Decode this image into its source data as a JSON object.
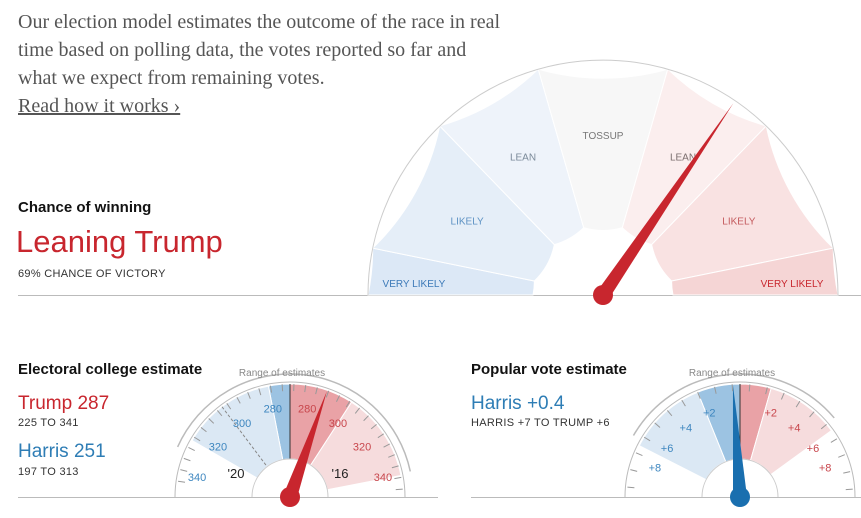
{
  "intro": {
    "text": "Our election model estimates the outcome of the race in real time based on polling data, the votes reported so far and what we expect from remaining votes.",
    "link": "Read how it works ›"
  },
  "chance": {
    "heading": "Chance of winning",
    "result": "Leaning Trump",
    "sub": "69% CHANCE OF VICTORY",
    "trump_probability": 0.69,
    "bands": [
      "VERY LIKELY",
      "LIKELY",
      "LEAN",
      "TOSSUP",
      "LEAN",
      "LIKELY",
      "VERY LIKELY"
    ]
  },
  "electoral": {
    "heading": "Electoral college estimate",
    "trump": "Trump 287",
    "trump_range": "225 TO 341",
    "harris": "Harris 251",
    "harris_range": "197 TO 313",
    "range_label": "Range of estimates",
    "ticks_harris": [
      "280",
      "300",
      "320",
      "340"
    ],
    "ticks_trump": [
      "280",
      "300",
      "320",
      "340"
    ],
    "marker_2020": "'20",
    "marker_2016": "'16",
    "trump_value": 287
  },
  "popular": {
    "heading": "Popular vote estimate",
    "value": "Harris +0.4",
    "range": "HARRIS +7 TO TRUMP +6",
    "range_label": "Range of estimates",
    "ticks_harris": [
      "+2",
      "+4",
      "+6",
      "+8"
    ],
    "ticks_trump": [
      "+2",
      "+4",
      "+6",
      "+8"
    ],
    "harris_margin": 0.4
  },
  "colors": {
    "red": "#c8262e",
    "blue": "#2e7db5"
  }
}
